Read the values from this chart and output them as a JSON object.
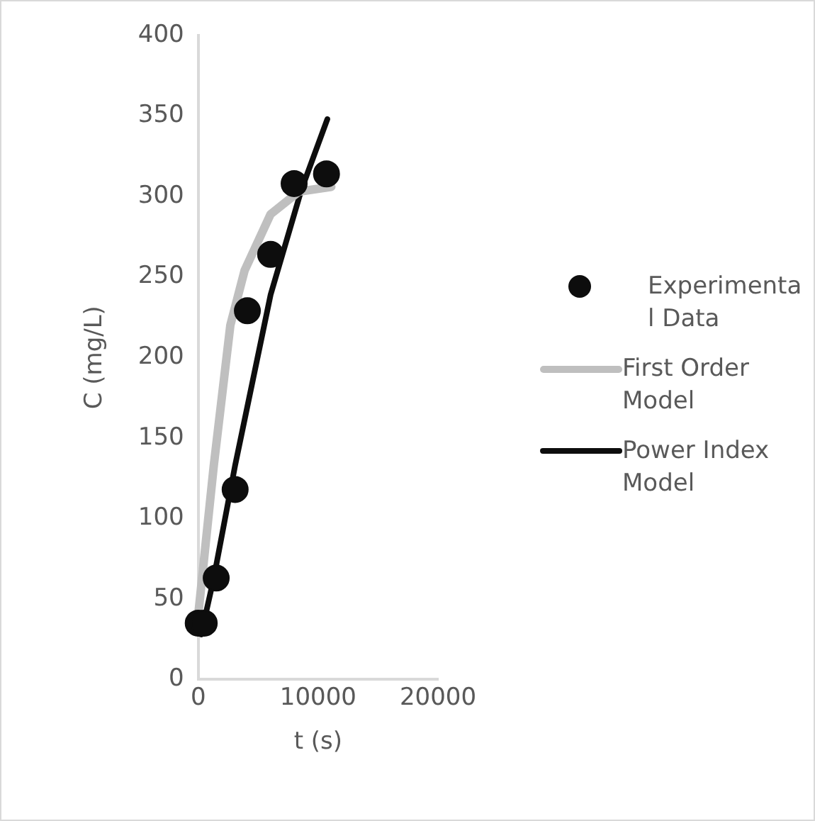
{
  "chart_data": {
    "type": "scatter",
    "xlabel": "t (s)",
    "ylabel": "C (mg/L)",
    "xlim": [
      0,
      20000
    ],
    "xticks": [
      0,
      10000,
      20000
    ],
    "ylim": [
      0,
      400
    ],
    "yticks": [
      0,
      50,
      100,
      150,
      200,
      250,
      300,
      350,
      400
    ],
    "grid": false,
    "legend": "right",
    "series": [
      {
        "name": "Experimental Data",
        "type": "scatter",
        "marker": "circle",
        "color": "#0d0d0d",
        "x": [
          0,
          500,
          1500,
          3080,
          4100,
          6040,
          8000,
          10700
        ],
        "values": [
          35,
          35,
          63,
          118,
          229,
          264,
          308,
          314
        ]
      },
      {
        "name": "First Order Model",
        "type": "line",
        "marker": "none",
        "color": "#bfbfbf",
        "x": [
          0,
          1300,
          2680,
          3870,
          6040,
          8400,
          11100
        ],
        "values": [
          40,
          133,
          220,
          254,
          289,
          303,
          306
        ]
      },
      {
        "name": "Power Index Model",
        "type": "line",
        "marker": "none",
        "color": "#0d0d0d",
        "x": [
          240,
          1300,
          3080,
          6040,
          8600,
          10770
        ],
        "values": [
          28,
          63,
          133,
          239,
          304,
          348
        ]
      }
    ]
  }
}
